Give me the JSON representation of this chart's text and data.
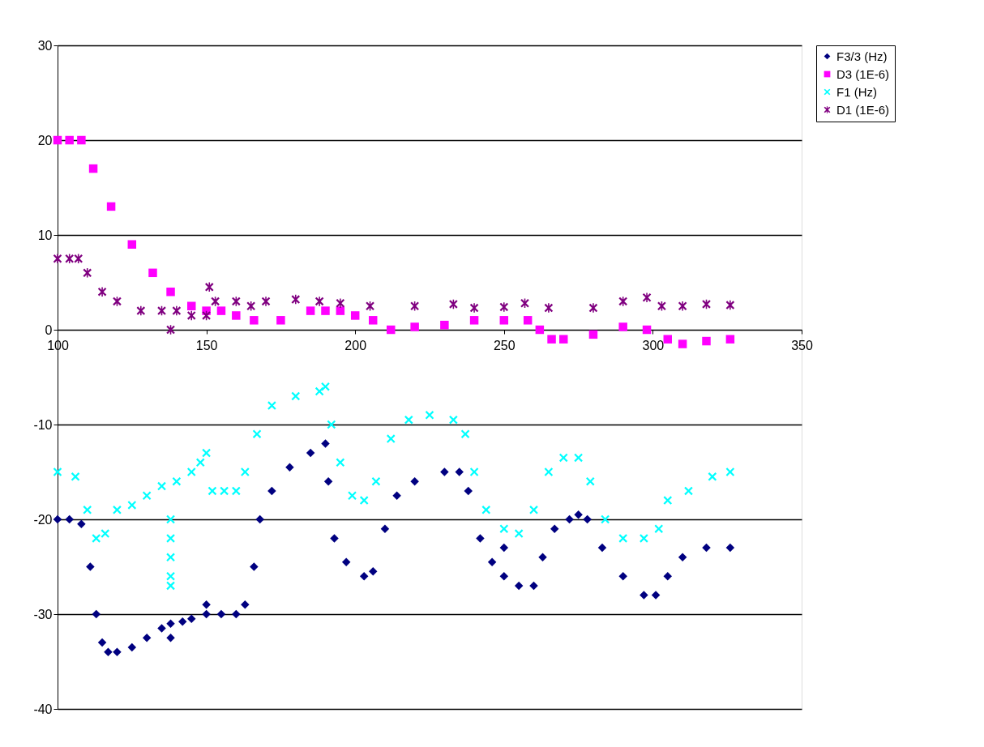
{
  "chart_data": {
    "type": "scatter",
    "xlim": [
      100,
      350
    ],
    "xticks": [
      100,
      150,
      200,
      250,
      300,
      350
    ],
    "ylim": [
      -40,
      30
    ],
    "yticks": [
      -40,
      -30,
      -20,
      -10,
      0,
      10,
      20,
      30
    ],
    "grid": "y",
    "legend": "right",
    "series": [
      {
        "name": "F3/3 (Hz)",
        "color": "#000080",
        "marker": "diamond",
        "x": [
          100,
          104,
          108,
          111,
          113,
          115,
          117,
          120,
          125,
          130,
          135,
          138,
          138,
          142,
          145,
          150,
          150,
          155,
          160,
          163,
          166,
          168,
          172,
          178,
          185,
          190,
          191,
          193,
          197,
          203,
          206,
          210,
          214,
          220,
          230,
          235,
          238,
          242,
          246,
          250,
          250,
          255,
          260,
          263,
          267,
          272,
          275,
          278,
          283,
          290,
          297,
          301,
          305,
          310,
          318,
          326
        ],
        "values": [
          -20,
          -20,
          -20.5,
          -25,
          -30,
          -33,
          -34,
          -34,
          -33.5,
          -32.5,
          -31.5,
          -31,
          -32.5,
          -30.8,
          -30.5,
          -30,
          -29,
          -30,
          -30,
          -29,
          -25,
          -20,
          -17,
          -14.5,
          -13,
          -12,
          -16,
          -22,
          -24.5,
          -26,
          -25.5,
          -21,
          -17.5,
          -16,
          -15,
          -15,
          -17,
          -22,
          -24.5,
          -26,
          -23,
          -27,
          -27,
          -24,
          -21,
          -20,
          -19.5,
          -20,
          -23,
          -26,
          -28,
          -28,
          -26,
          -24,
          -23,
          -23
        ]
      },
      {
        "name": "D3 (1E-6)",
        "color": "#ff00ff",
        "marker": "square",
        "x": [
          100,
          104,
          108,
          112,
          118,
          125,
          132,
          138,
          145,
          150,
          155,
          160,
          166,
          175,
          185,
          190,
          195,
          200,
          206,
          212,
          220,
          230,
          240,
          250,
          258,
          262,
          266,
          270,
          280,
          290,
          298,
          305,
          310,
          318,
          326
        ],
        "values": [
          20,
          20,
          20,
          17,
          13,
          9,
          6,
          4,
          2.5,
          2,
          2,
          1.5,
          1,
          1,
          2,
          2,
          2,
          1.5,
          1,
          0,
          0.3,
          0.5,
          1,
          1,
          1,
          0,
          -1,
          -1,
          -0.5,
          0.3,
          0,
          -1,
          -1.5,
          -1.2,
          -1
        ]
      },
      {
        "name": "F1 (Hz)",
        "color": "#00ffff",
        "marker": "cross",
        "x": [
          100,
          106,
          110,
          113,
          116,
          120,
          125,
          130,
          135,
          138,
          138,
          138,
          138,
          138,
          140,
          145,
          148,
          150,
          152,
          156,
          160,
          163,
          167,
          172,
          180,
          188,
          190,
          192,
          195,
          199,
          203,
          207,
          212,
          218,
          225,
          233,
          237,
          240,
          244,
          250,
          255,
          260,
          265,
          270,
          275,
          279,
          284,
          290,
          297,
          302,
          305,
          312,
          320,
          326
        ],
        "values": [
          -15,
          -15.5,
          -19,
          -22,
          -21.5,
          -19,
          -18.5,
          -17.5,
          -16.5,
          -20,
          -22,
          -24,
          -26,
          -27,
          -16,
          -15,
          -14,
          -13,
          -17,
          -17,
          -17,
          -15,
          -11,
          -8,
          -7,
          -6.5,
          -6,
          -10,
          -14,
          -17.5,
          -18,
          -16,
          -11.5,
          -9.5,
          -9,
          -9.5,
          -11,
          -15,
          -19,
          -21,
          -21.5,
          -19,
          -15,
          -13.5,
          -13.5,
          -16,
          -20,
          -22,
          -22,
          -21,
          -18,
          -17,
          -15.5,
          -15
        ]
      },
      {
        "name": "D1 (1E-6)",
        "color": "#800080",
        "marker": "star",
        "x": [
          100,
          104,
          107,
          110,
          115,
          120,
          128,
          135,
          138,
          140,
          145,
          150,
          151,
          153,
          160,
          165,
          170,
          180,
          188,
          195,
          205,
          220,
          233,
          240,
          250,
          257,
          265,
          280,
          290,
          298,
          303,
          310,
          318,
          326
        ],
        "values": [
          7.5,
          7.5,
          7.5,
          6,
          4,
          3,
          2,
          2,
          0,
          2,
          1.5,
          1.5,
          4.5,
          3,
          3,
          2.5,
          3,
          3.2,
          3,
          2.8,
          2.5,
          2.5,
          2.7,
          2.3,
          2.4,
          2.8,
          2.3,
          2.3,
          3,
          3.4,
          2.5,
          2.5,
          2.7,
          2.6
        ]
      }
    ]
  }
}
